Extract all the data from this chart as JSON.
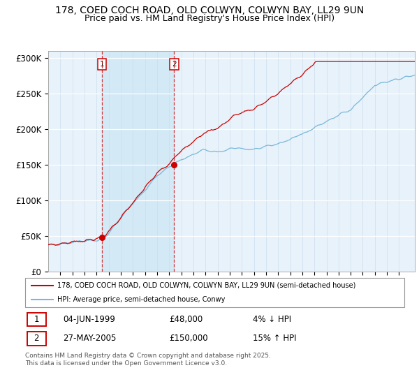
{
  "title_line1": "178, COED COCH ROAD, OLD COLWYN, COLWYN BAY, LL29 9UN",
  "title_line2": "Price paid vs. HM Land Registry's House Price Index (HPI)",
  "hpi_color": "#7ab8d9",
  "price_color": "#cc0000",
  "bg_color": "#e8f2fa",
  "shade_color": "#d0e8f5",
  "sale1_year": 1999.43,
  "sale1_price": 48000,
  "sale2_year": 2005.41,
  "sale2_price": 150000,
  "legend_line1": "178, COED COCH ROAD, OLD COLWYN, COLWYN BAY, LL29 9UN (semi-detached house)",
  "legend_line2": "HPI: Average price, semi-detached house, Conwy",
  "table_row1": [
    "1",
    "04-JUN-1999",
    "£48,000",
    "4% ↓ HPI"
  ],
  "table_row2": [
    "2",
    "27-MAY-2005",
    "£150,000",
    "15% ↑ HPI"
  ],
  "footnote": "Contains HM Land Registry data © Crown copyright and database right 2025.\nThis data is licensed under the Open Government Licence v3.0.",
  "xmin": 1995.0,
  "xmax": 2025.3,
  "ylim": [
    0,
    310000
  ],
  "yticks": [
    0,
    50000,
    100000,
    150000,
    200000,
    250000,
    300000
  ],
  "ytick_labels": [
    "£0",
    "£50K",
    "£100K",
    "£150K",
    "£200K",
    "£250K",
    "£300K"
  ],
  "title_fontsize": 10,
  "subtitle_fontsize": 9
}
